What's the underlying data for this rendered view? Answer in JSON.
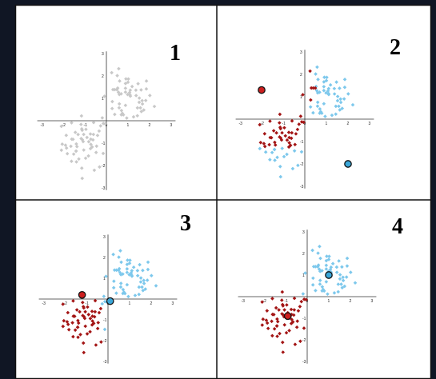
{
  "colors": {
    "background": "#101624",
    "panel": "#ffffff",
    "border": "#111111",
    "gray": "#c8c8c8",
    "red": "#a31515",
    "blue": "#7dc8ec",
    "centroid_red": "#cc1f1f",
    "centroid_blue": "#3aa6d8"
  },
  "panels": [
    {
      "number": "1",
      "axis_ticks": {
        "x": [
          "-3",
          "-2",
          "-1",
          "0",
          "1",
          "2",
          "3"
        ],
        "y": [
          "3",
          "2",
          "1",
          "0",
          "-1",
          "-2",
          "-3"
        ]
      },
      "centroids": []
    },
    {
      "number": "2",
      "axis_ticks": {
        "x": [
          "-3",
          "-2",
          "-1",
          "0",
          "1",
          "2",
          "3"
        ],
        "y": [
          "3",
          "2",
          "1",
          "0",
          "-1",
          "-2",
          "-3"
        ]
      },
      "centroids": [
        {
          "cluster": "red",
          "x": -2.0,
          "y": 1.3
        },
        {
          "cluster": "blue",
          "x": 2.0,
          "y": -2.0
        }
      ]
    },
    {
      "number": "3",
      "axis_ticks": {
        "x": [
          "-3",
          "-2",
          "-1",
          "0",
          "1",
          "2",
          "3"
        ],
        "y": [
          "3",
          "2",
          "1",
          "0",
          "-1",
          "-2",
          "-3"
        ]
      },
      "centroids": [
        {
          "cluster": "red",
          "x": -1.2,
          "y": 0.2
        },
        {
          "cluster": "blue",
          "x": 0.1,
          "y": -0.1
        }
      ]
    },
    {
      "number": "4",
      "axis_ticks": {
        "x": [
          "-3",
          "-2",
          "-1",
          "0",
          "1",
          "2",
          "3"
        ],
        "y": [
          "3",
          "2",
          "1",
          "0",
          "-1",
          "-2",
          "-3"
        ]
      },
      "centroids": [
        {
          "cluster": "red",
          "x": -0.9,
          "y": -0.9
        },
        {
          "cluster": "blue",
          "x": 1.0,
          "y": 1.0
        }
      ]
    }
  ]
}
